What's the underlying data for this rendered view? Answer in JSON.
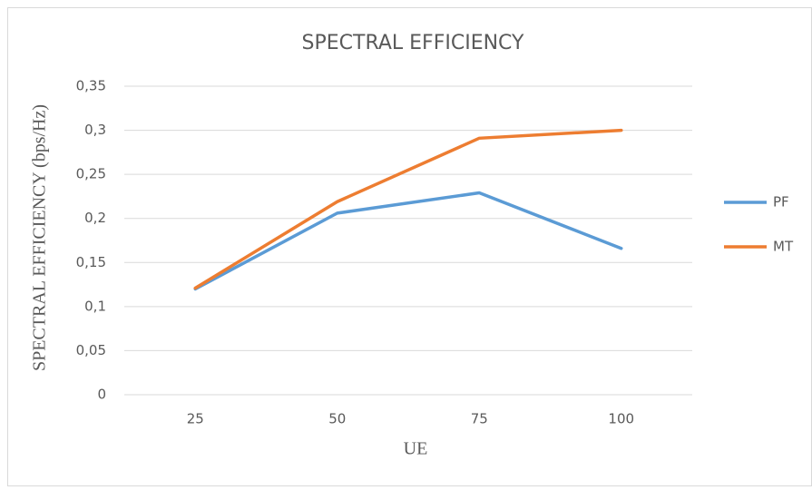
{
  "chart_data": {
    "type": "line",
    "title": "SPECTRAL EFFICIENCY",
    "x_label": "UE",
    "y_label": "SPECTRAL EFFICIENCY (bps/Hz)",
    "categories": [
      "25",
      "50",
      "75",
      "100"
    ],
    "series": [
      {
        "name": "PF",
        "color": "#5b9bd5",
        "values": [
          0.12,
          0.206,
          0.229,
          0.166
        ]
      },
      {
        "name": "MT",
        "color": "#ed7d31",
        "values": [
          0.121,
          0.219,
          0.291,
          0.3
        ]
      }
    ],
    "ylim": [
      0,
      0.35
    ],
    "yticks": [
      0,
      {
        "value": 0.05,
        "label": "0,05"
      },
      {
        "value": 0.1,
        "label": "0,1"
      },
      {
        "value": 0.15,
        "label": "0,15"
      },
      {
        "value": 0.2,
        "label": "0,2"
      },
      {
        "value": 0.25,
        "label": "0,25"
      },
      {
        "value": 0.3,
        "label": "0,3"
      },
      {
        "value": 0.35,
        "label": "0,35"
      }
    ],
    "grid": true,
    "legend": "right"
  }
}
